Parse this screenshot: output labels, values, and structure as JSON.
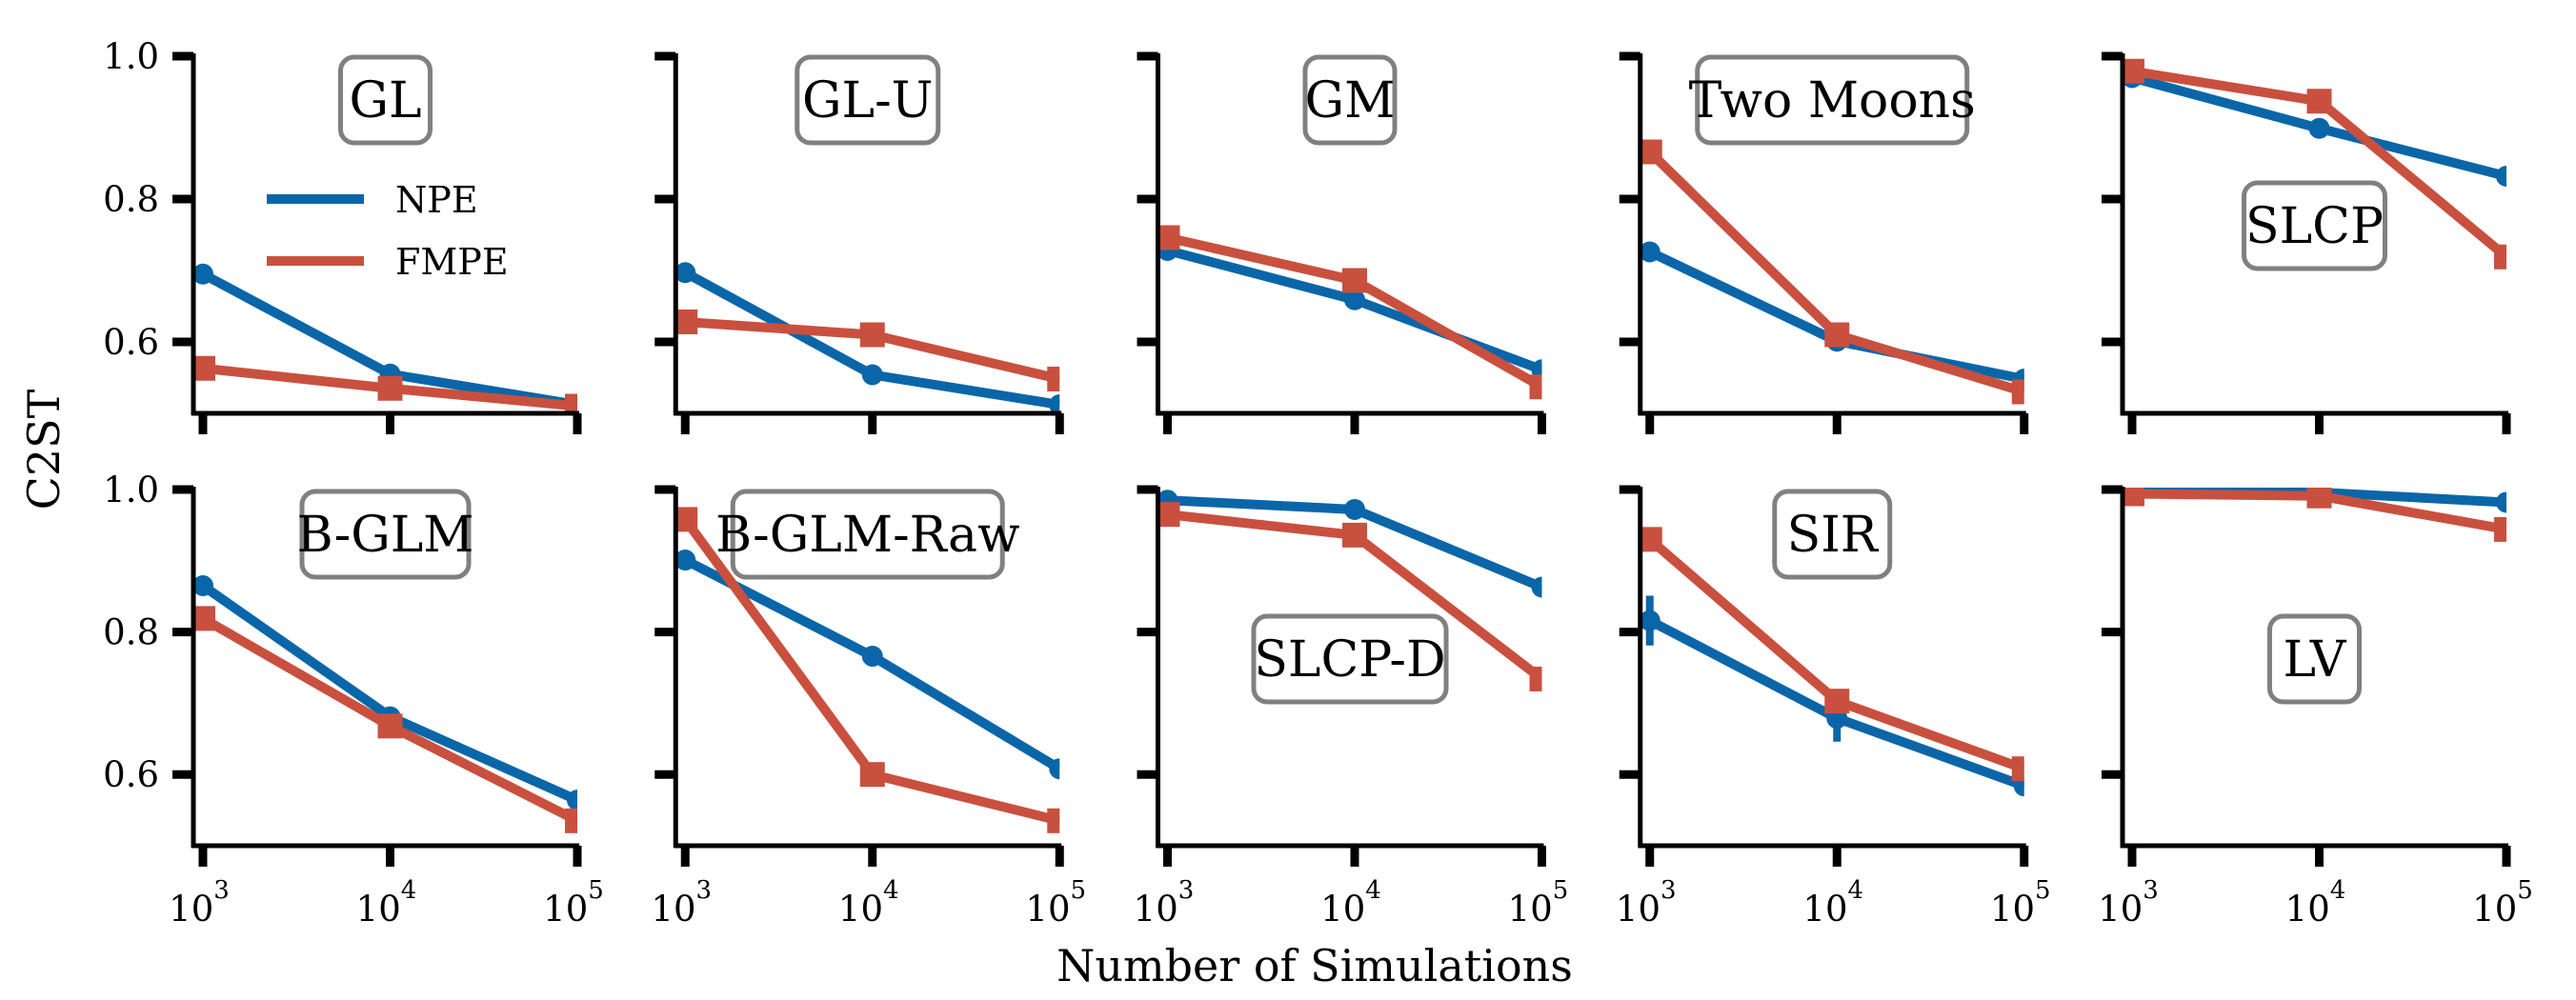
{
  "chart_data": {
    "type": "line",
    "layout": "2 rows x 5 columns of subplots, shared axes",
    "xlabel": "Number of Simulations",
    "ylabel": "C2ST",
    "xscale": "log",
    "xlim": [
      1000,
      100000
    ],
    "ylim": [
      0.5,
      1.0
    ],
    "x": [
      1000,
      10000,
      100000
    ],
    "xtick_labels": [
      {
        "base": "10",
        "exp": "3"
      },
      {
        "base": "10",
        "exp": "4"
      },
      {
        "base": "10",
        "exp": "5"
      }
    ],
    "yticks": [
      0.6,
      0.8,
      1.0
    ],
    "ytick_labels": [
      "0.6",
      "0.8",
      "1.0"
    ],
    "grid": false,
    "legend": {
      "placement": "inside first panel, upper-middle",
      "entries": [
        {
          "name": "NPE",
          "color": "#0a66a8",
          "marker": "circle"
        },
        {
          "name": "FMPE",
          "color": "#c9503e",
          "marker": "square"
        }
      ]
    },
    "panels": [
      {
        "title": "GL",
        "title_pos": "top",
        "series": [
          {
            "name": "NPE",
            "values": [
              0.695,
              0.555,
              0.512
            ]
          },
          {
            "name": "FMPE",
            "values": [
              0.563,
              0.535,
              0.51
            ]
          }
        ]
      },
      {
        "title": "GL-U",
        "title_pos": "top",
        "series": [
          {
            "name": "NPE",
            "values": [
              0.697,
              0.554,
              0.512
            ]
          },
          {
            "name": "FMPE",
            "values": [
              0.628,
              0.61,
              0.548
            ]
          }
        ]
      },
      {
        "title": "GM",
        "title_pos": "top",
        "series": [
          {
            "name": "NPE",
            "values": [
              0.728,
              0.659,
              0.561
            ]
          },
          {
            "name": "FMPE",
            "values": [
              0.746,
              0.686,
              0.537
            ]
          }
        ]
      },
      {
        "title": "Two Moons",
        "title_pos": "top",
        "series": [
          {
            "name": "NPE",
            "values": [
              0.726,
              0.601,
              0.548
            ]
          },
          {
            "name": "FMPE",
            "values": [
              0.866,
              0.61,
              0.53
            ]
          }
        ]
      },
      {
        "title": "SLCP",
        "title_pos": "middle",
        "series": [
          {
            "name": "NPE",
            "values": [
              0.97,
              0.899,
              0.832
            ]
          },
          {
            "name": "FMPE",
            "values": [
              0.979,
              0.937,
              0.719
            ],
            "errors": [
              0,
              0,
              0.015
            ]
          }
        ]
      },
      {
        "title": "B-GLM",
        "title_pos": "top",
        "series": [
          {
            "name": "NPE",
            "values": [
              0.865,
              0.681,
              0.564
            ]
          },
          {
            "name": "FMPE",
            "values": [
              0.819,
              0.668,
              0.535
            ]
          }
        ]
      },
      {
        "title": "B-GLM-Raw",
        "title_pos": "top",
        "series": [
          {
            "name": "NPE",
            "values": [
              0.901,
              0.766,
              0.608
            ]
          },
          {
            "name": "FMPE",
            "values": [
              0.958,
              0.6,
              0.535
            ]
          }
        ]
      },
      {
        "title": "SLCP-D",
        "title_pos": "middle",
        "series": [
          {
            "name": "NPE",
            "values": [
              0.985,
              0.972,
              0.863
            ]
          },
          {
            "name": "FMPE",
            "values": [
              0.965,
              0.936,
              0.734
            ],
            "errors": [
              0,
              0,
              0.015
            ]
          }
        ]
      },
      {
        "title": "SIR",
        "title_pos": "top",
        "series": [
          {
            "name": "NPE",
            "values": [
              0.816,
              0.679,
              0.584
            ],
            "errors": [
              0.035,
              0.033,
              0
            ]
          },
          {
            "name": "FMPE",
            "values": [
              0.93,
              0.703,
              0.608
            ],
            "errors": [
              0,
              0.012,
              0
            ]
          }
        ]
      },
      {
        "title": "LV",
        "title_pos": "middle",
        "series": [
          {
            "name": "NPE",
            "values": [
              0.998,
              0.996,
              0.982
            ]
          },
          {
            "name": "FMPE",
            "values": [
              0.994,
              0.991,
              0.944
            ]
          }
        ]
      }
    ]
  }
}
